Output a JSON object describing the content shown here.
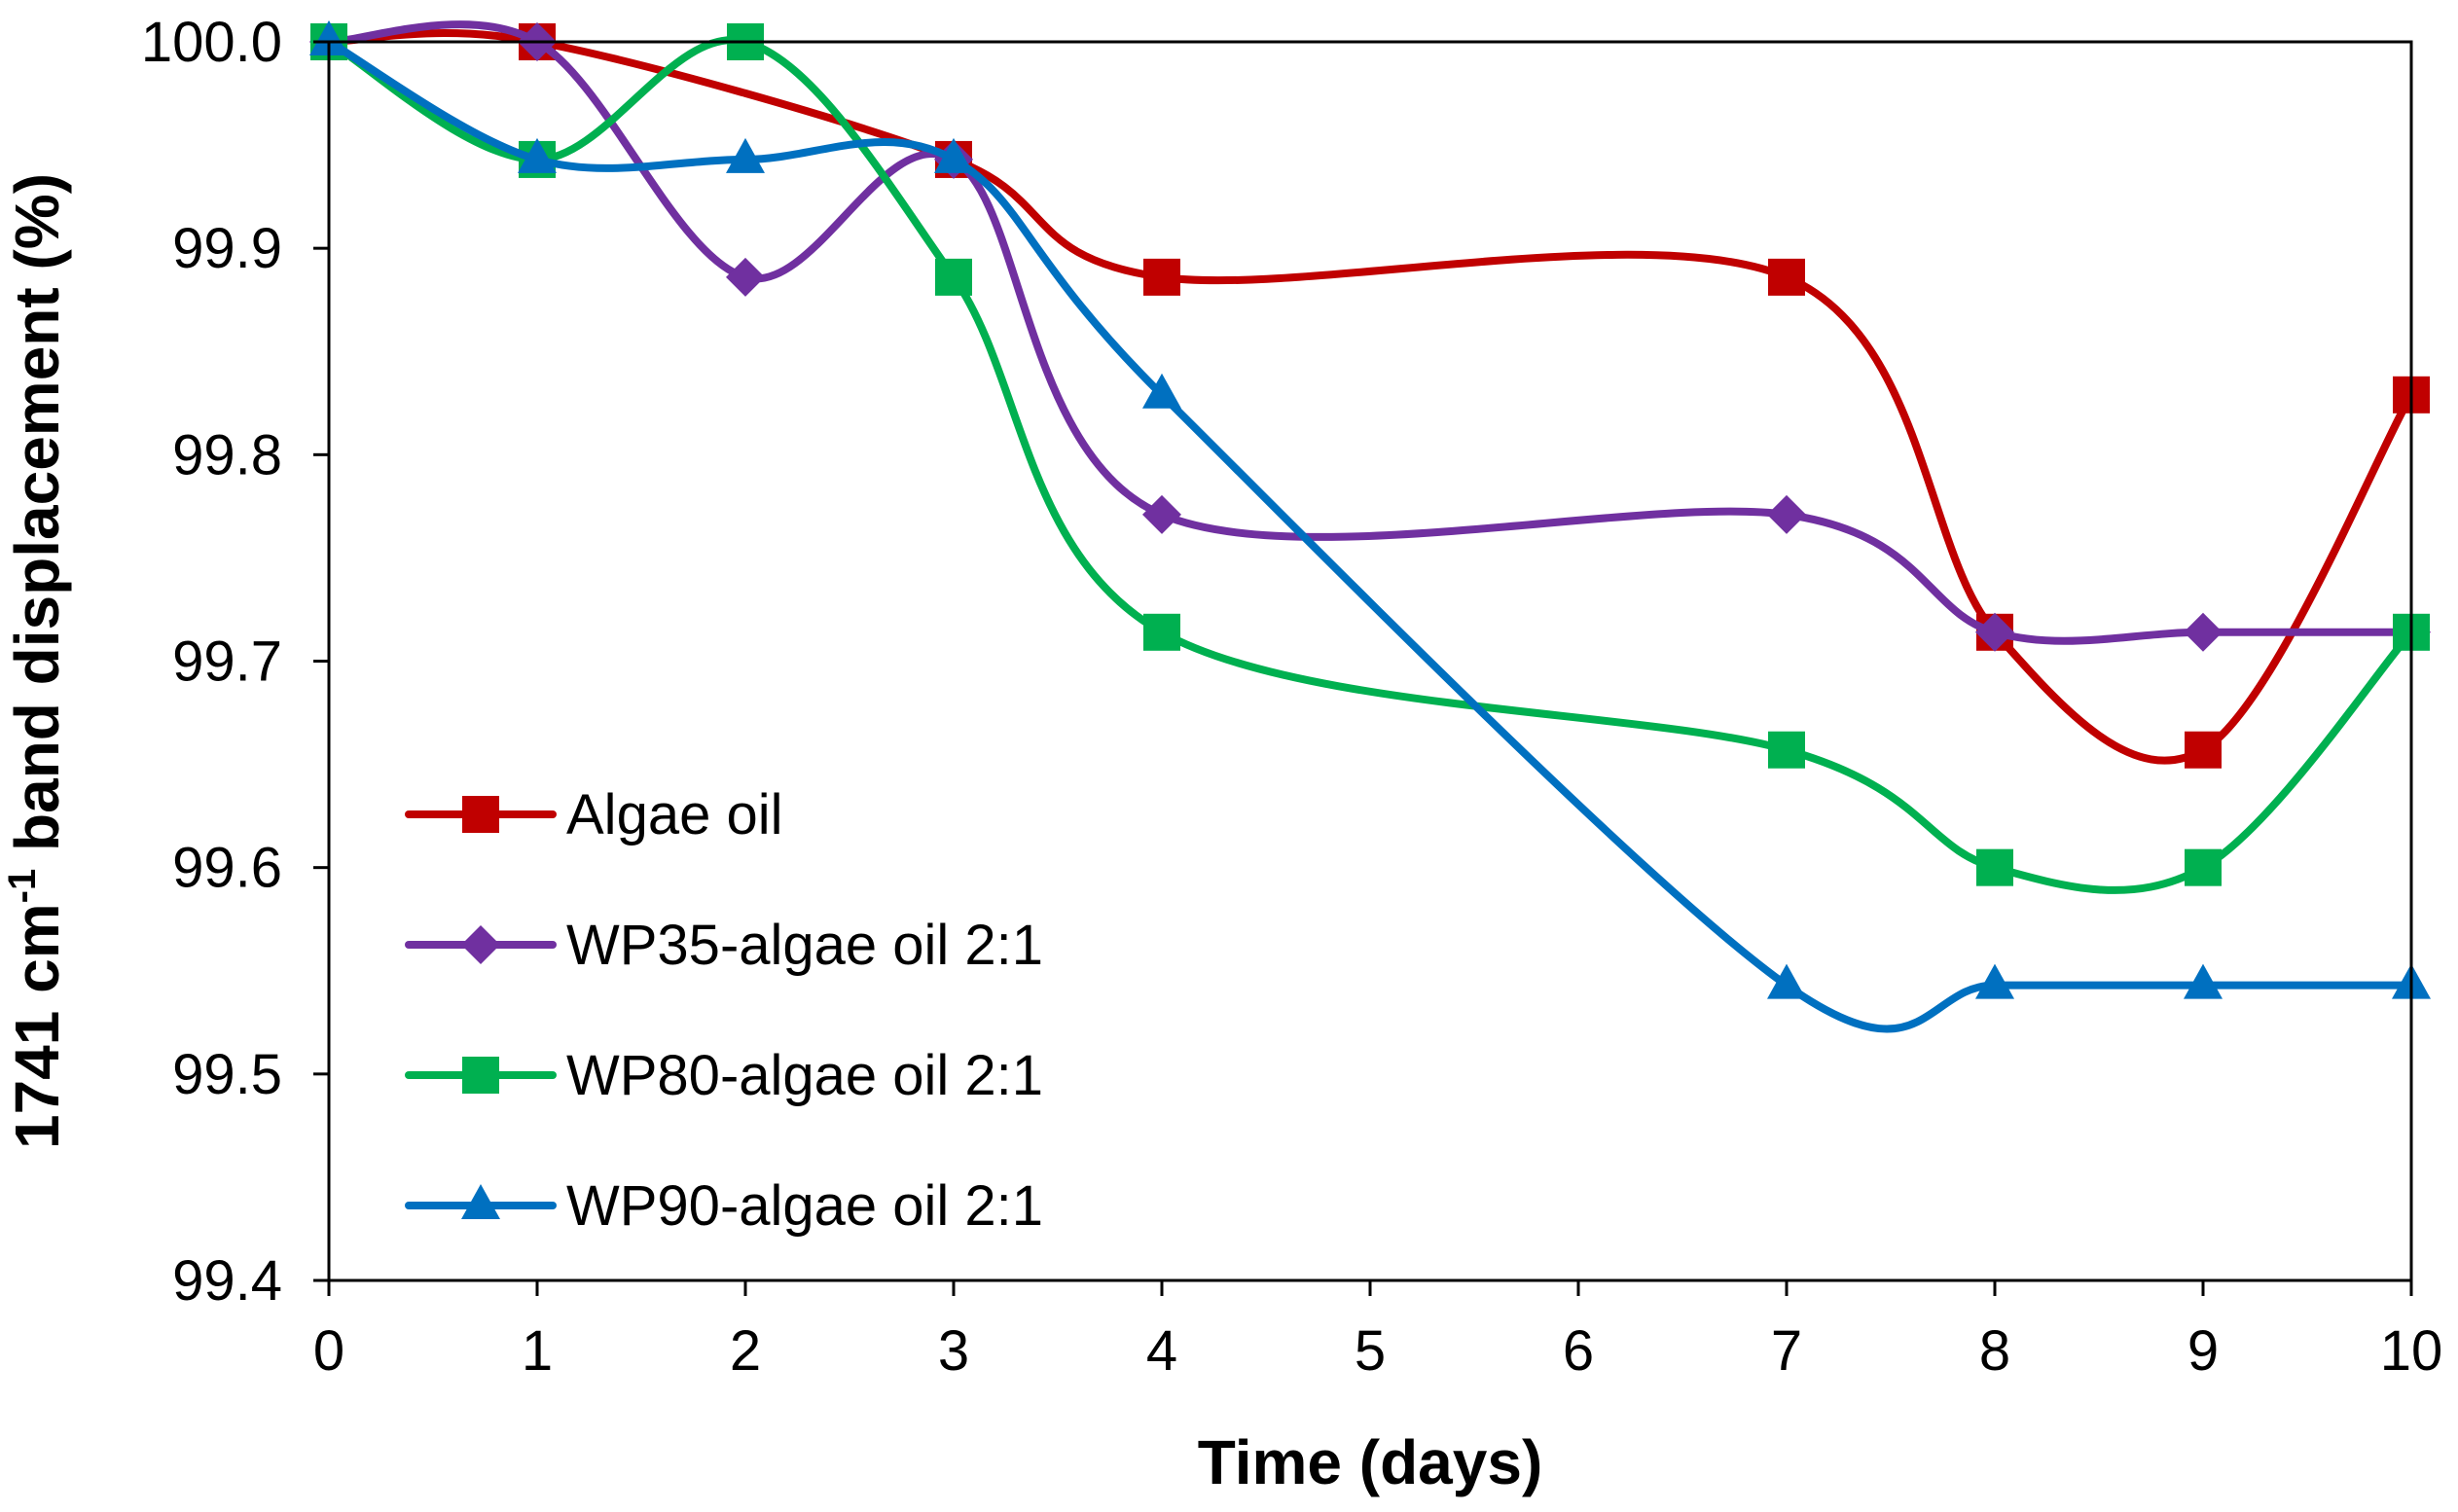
{
  "chart_data": {
    "type": "line",
    "title": "",
    "xlabel": "Time (days)",
    "ylabel_parts": {
      "main": "1741 cm",
      "sup": "-1",
      "rest": " band displacement (%)"
    },
    "categories": [
      "0",
      "1",
      "2",
      "3",
      "4",
      "5",
      "6",
      "7",
      "8",
      "9",
      "10"
    ],
    "ylim": [
      99.4,
      100.0
    ],
    "yticks": [
      "99.4",
      "99.5",
      "99.6",
      "99.7",
      "99.8",
      "99.9",
      "100.0"
    ],
    "smooth": true,
    "grid": false,
    "legend_position": "left-center",
    "series": [
      {
        "name": "Algae oil",
        "color": "#C00000",
        "marker": "square",
        "points": [
          [
            0,
            100.0
          ],
          [
            1,
            100.0
          ],
          [
            3,
            99.943
          ],
          [
            4,
            99.886
          ],
          [
            7,
            99.886
          ],
          [
            8,
            99.714
          ],
          [
            9,
            99.657
          ],
          [
            10,
            99.829
          ]
        ]
      },
      {
        "name": "WP35-algae oil 2:1",
        "color": "#7030A0",
        "marker": "diamond",
        "points": [
          [
            0,
            100.0
          ],
          [
            1,
            100.0
          ],
          [
            2,
            99.886
          ],
          [
            3,
            99.943
          ],
          [
            4,
            99.771
          ],
          [
            7,
            99.771
          ],
          [
            8,
            99.714
          ],
          [
            9,
            99.714
          ],
          [
            10,
            99.714
          ]
        ]
      },
      {
        "name": "WP80-algae oil 2:1",
        "color": "#00B050",
        "marker": "square",
        "points": [
          [
            0,
            100.0
          ],
          [
            1,
            99.943
          ],
          [
            2,
            100.0
          ],
          [
            3,
            99.886
          ],
          [
            4,
            99.714
          ],
          [
            7,
            99.657
          ],
          [
            8,
            99.6
          ],
          [
            9,
            99.6
          ],
          [
            10,
            99.714
          ]
        ]
      },
      {
        "name": "WP90-algae oil 2:1",
        "color": "#0070C0",
        "marker": "triangle",
        "points": [
          [
            0,
            100.0
          ],
          [
            1,
            99.943
          ],
          [
            2,
            99.943
          ],
          [
            3,
            99.943
          ],
          [
            4,
            99.829
          ],
          [
            7,
            99.543
          ],
          [
            8,
            99.543
          ],
          [
            9,
            99.543
          ],
          [
            10,
            99.543
          ]
        ]
      }
    ]
  }
}
